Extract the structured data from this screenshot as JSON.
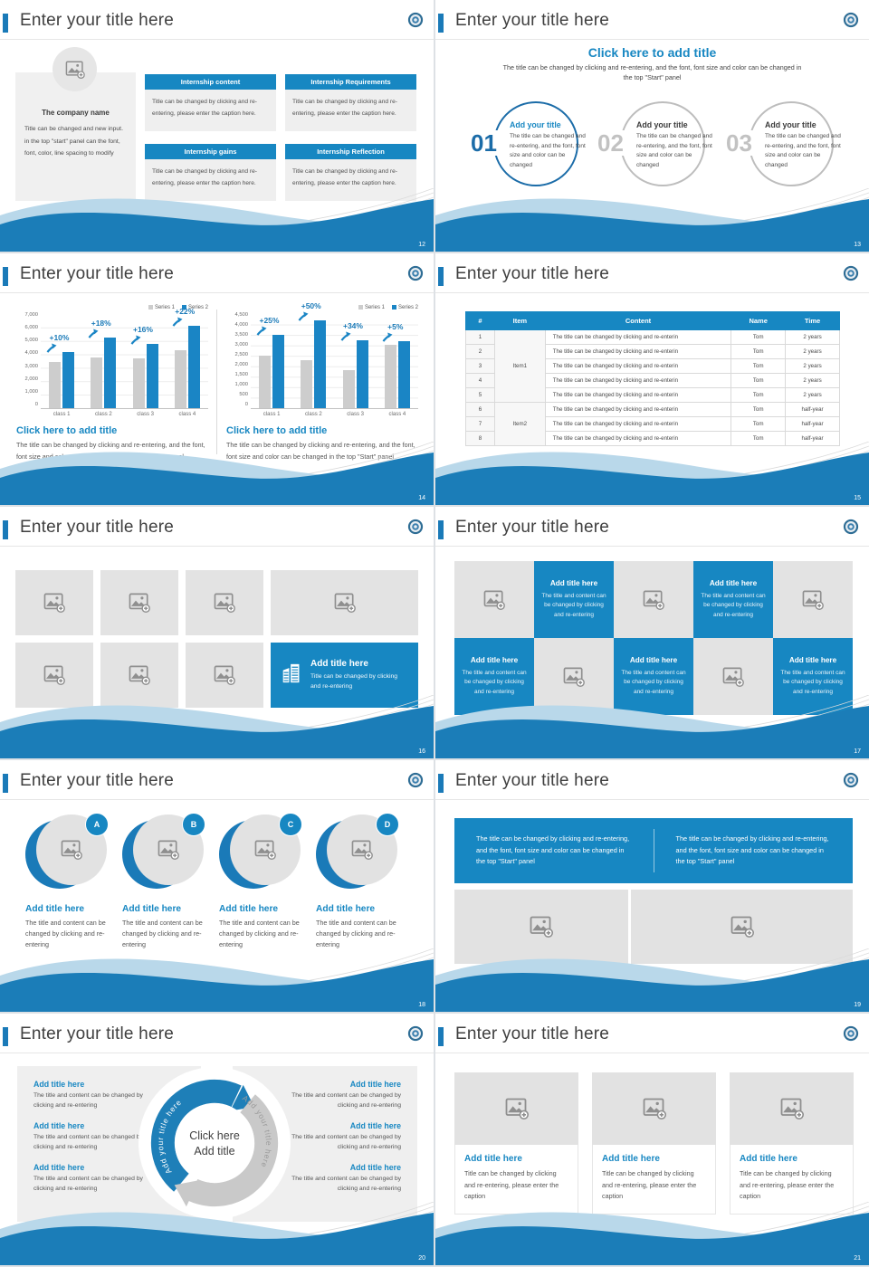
{
  "common": {
    "header_title": "Enter your title here",
    "accent_color": "#1787c2",
    "wave_dark_color": "#1b7db8",
    "wave_light_color": "#b9d8ea",
    "logo": "school-seal-icon"
  },
  "slide12": {
    "page": "12",
    "company": {
      "name": "The company name",
      "body": "Title can be changed and new input. in the top \"start\" panel can the font, font, color, line spacing to modify"
    },
    "boxes": [
      {
        "title": "Internship content",
        "body": "Title can be changed by clicking and re-entering, please enter the caption here."
      },
      {
        "title": "Internship Requirements",
        "body": "Title can be changed by clicking and re-entering, please enter the caption here."
      },
      {
        "title": "Internship gains",
        "body": "Title can be changed by clicking and re-entering, please enter the caption here."
      },
      {
        "title": "Internship Reflection",
        "body": "Title can be changed by clicking and re-entering, please enter the caption here."
      }
    ]
  },
  "slide13": {
    "page": "13",
    "heading": "Click here to add title",
    "subheading": "The title can be changed by clicking and re-entering, and the font, font size and color can be changed in the top \"Start\" panel",
    "items": [
      {
        "num": "01",
        "title": "Add your title",
        "body": "The title can be changed and re-entering, and the font, font size and color can be changed",
        "accent": true
      },
      {
        "num": "02",
        "title": "Add your title",
        "body": "The title can be changed and re-entering, and the font, font size and color can be changed",
        "accent": false
      },
      {
        "num": "03",
        "title": "Add your title",
        "body": "The title can be changed and re-entering, and the font, font size and color can be changed",
        "accent": false
      }
    ]
  },
  "slide14": {
    "page": "14",
    "chart_data": [
      {
        "type": "bar",
        "title": "Click here to add title",
        "caption": "The title can be changed by clicking and re-entering, and the font, font size and color can be changed in the top \"Start\" panel",
        "categories": [
          "class 1",
          "class 2",
          "class 3",
          "class 4"
        ],
        "series": [
          {
            "name": "Series 1",
            "color": "#cdcdcd",
            "values": [
              3450,
              3800,
              3700,
              4300
            ]
          },
          {
            "name": "Series 2",
            "color": "#1a85c5",
            "values": [
              4200,
              5250,
              4750,
              6100
            ]
          }
        ],
        "growth_labels": [
          "+10%",
          "+18%",
          "+16%",
          "+22%"
        ],
        "ylim": [
          0,
          7000
        ],
        "yticks": [
          "7,000",
          "6,000",
          "5,000",
          "4,000",
          "3,000",
          "2,000",
          "1,000",
          "0"
        ],
        "grid_divisions": 7,
        "legend_position": "top-right",
        "grid": true
      },
      {
        "type": "bar",
        "title": "Click here to add title",
        "caption": "The title can be changed by clicking and re-entering, and the font, font size and color can be changed in the top \"Start\" panel",
        "categories": [
          "class 1",
          "class 2",
          "class 3",
          "class 4"
        ],
        "series": [
          {
            "name": "Series 1",
            "color": "#cdcdcd",
            "values": [
              2500,
              2300,
              1800,
              3050
            ]
          },
          {
            "name": "Series 2",
            "color": "#1a85c5",
            "values": [
              3500,
              4200,
              3250,
              3200
            ]
          }
        ],
        "growth_labels": [
          "+25%",
          "+50%",
          "+34%",
          "+5%"
        ],
        "ylim": [
          0,
          4500
        ],
        "yticks": [
          "4,500",
          "4,000",
          "3,500",
          "3,000",
          "2,500",
          "2,000",
          "1,500",
          "1,000",
          "500",
          "0"
        ],
        "grid_divisions": 9,
        "legend_position": "top-right",
        "grid": true
      }
    ]
  },
  "slide15": {
    "page": "15",
    "headers": [
      "#",
      "Item",
      "Content",
      "Name",
      "Time"
    ],
    "content_text": "The title can be changed by clicking and re-enterin",
    "name_text": "Tom",
    "groups": [
      {
        "item": "Item1",
        "span": 5,
        "time": "2 years"
      },
      {
        "item": "Item2",
        "span": 3,
        "time": "half-year"
      }
    ]
  },
  "slide16": {
    "page": "16",
    "cells": [
      "image",
      "image",
      "image",
      "image",
      "image",
      "image",
      "image",
      "feature"
    ],
    "feature": {
      "title": "Add title here",
      "body": "Title can be changed by clicking and re-entering"
    }
  },
  "slide17": {
    "page": "17",
    "pattern": [
      "image",
      "text",
      "image",
      "text",
      "image",
      "text",
      "image",
      "text",
      "image",
      "text"
    ],
    "text_cell": {
      "title": "Add title here",
      "body": "The title and content can be changed by clicking and re-entering"
    }
  },
  "slide18": {
    "page": "18",
    "items": [
      {
        "letter": "A",
        "title": "Add title here",
        "body": "The title and content can be changed by clicking and re-entering"
      },
      {
        "letter": "B",
        "title": "Add title here",
        "body": "The title and content can be changed by clicking and re-entering"
      },
      {
        "letter": "C",
        "title": "Add title here",
        "body": "The title and content can be changed by clicking and re-entering"
      },
      {
        "letter": "D",
        "title": "Add title here",
        "body": "The title and content can be changed by clicking and re-entering"
      }
    ]
  },
  "slide19": {
    "page": "19",
    "texts": [
      "The title can be changed by clicking and re-entering,  and the font, font size and color can be changed in the top \"Start\" panel",
      "The title can be changed by clicking and re-entering,  and the font, font size and color can be changed in the top \"Start\" panel"
    ]
  },
  "slide20": {
    "page": "20",
    "left_items": [
      {
        "title": "Add title here",
        "body": "The title and content can be changed by clicking and re-entering"
      },
      {
        "title": "Add title here",
        "body": "The title and content can be changed by clicking and re-entering"
      },
      {
        "title": "Add title here",
        "body": "The title and content can be changed by clicking and re-entering"
      }
    ],
    "right_items": [
      {
        "title": "Add title here",
        "body": "The title and content can be changed by clicking and re-entering"
      },
      {
        "title": "Add title here",
        "body": "The title and content can be changed by clicking and re-entering"
      },
      {
        "title": "Add title here",
        "body": "The title and content can be changed by clicking and re-entering"
      }
    ],
    "center": [
      "Click here",
      "Add title"
    ],
    "arc_label": "Add your title here"
  },
  "slide21": {
    "page": "21",
    "cards": [
      {
        "title": "Add title here",
        "body": "Title can be changed by clicking and re-entering, please enter the caption"
      },
      {
        "title": "Add title here",
        "body": "Title can be changed by clicking and re-entering, please enter the caption"
      },
      {
        "title": "Add title here",
        "body": "Title can be changed by clicking and re-entering, please enter the caption"
      }
    ]
  }
}
